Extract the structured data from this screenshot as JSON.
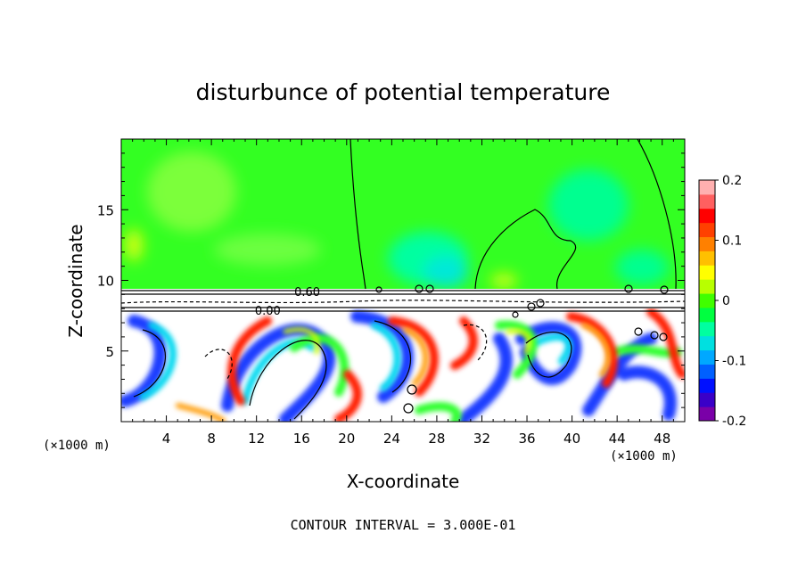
{
  "chart_data": {
    "type": "heatmap",
    "title": "disturbunce of potential temperature",
    "xlabel": "X-coordinate",
    "ylabel": "Z-coordinate",
    "x_unit": "(×1000 m)",
    "x_unit_right": "(×1000 m)",
    "xlim": [
      0,
      50
    ],
    "ylim": [
      0,
      20
    ],
    "x_ticks": [
      4,
      8,
      12,
      16,
      20,
      24,
      28,
      32,
      36,
      40,
      44,
      48
    ],
    "y_ticks": [
      5,
      10,
      15
    ],
    "colorbar": {
      "range": [
        -0.2,
        0.2
      ],
      "tick_labels": [
        "0.2",
        "0.1",
        "0",
        "-0.1",
        "-0.2"
      ],
      "tick_values": [
        0.2,
        0.1,
        0,
        -0.1,
        -0.2
      ],
      "colors": [
        "#7a00a8",
        "#3a00c8",
        "#0010ff",
        "#0060ff",
        "#00a8ff",
        "#00e0e0",
        "#00ffa0",
        "#00ff40",
        "#40ff00",
        "#b8ff00",
        "#ffff00",
        "#ffc000",
        "#ff8000",
        "#ff4000",
        "#ff0000",
        "#ff6060",
        "#ffb0b0"
      ]
    },
    "contour_labels": [
      {
        "text": "0.60",
        "x": 16.5,
        "y": 9.2
      },
      {
        "text": "0.00",
        "x": 13.0,
        "y": 7.9
      }
    ],
    "annotation": "CONTOUR INTERVAL = 3.000E-01",
    "grid": false,
    "legend": "colorbar-right"
  }
}
